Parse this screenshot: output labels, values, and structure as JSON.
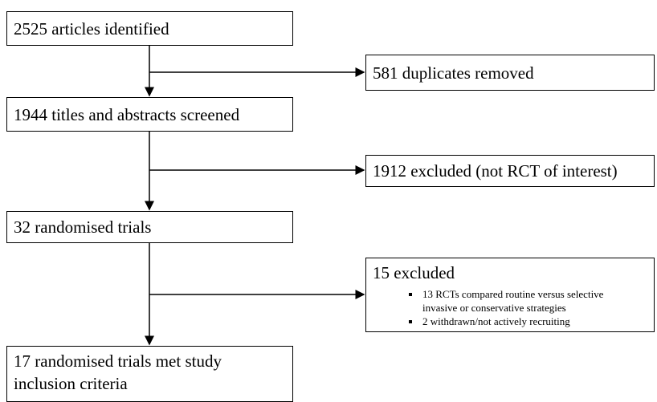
{
  "main_steps": [
    {
      "text": "2525 articles identified"
    },
    {
      "text": "1944 titles and abstracts screened"
    },
    {
      "text": "32 randomised trials"
    },
    {
      "lines": [
        "17 randomised trials met study",
        "inclusion criteria"
      ]
    }
  ],
  "exclusions": [
    {
      "title": "581 duplicates removed"
    },
    {
      "title": "1912 excluded (not RCT of interest)"
    },
    {
      "title": "15 excluded",
      "bullets": [
        "13 RCTs compared routine versus selective invasive or conservative strategies",
        "2 withdrawn/not actively recruiting"
      ]
    }
  ]
}
